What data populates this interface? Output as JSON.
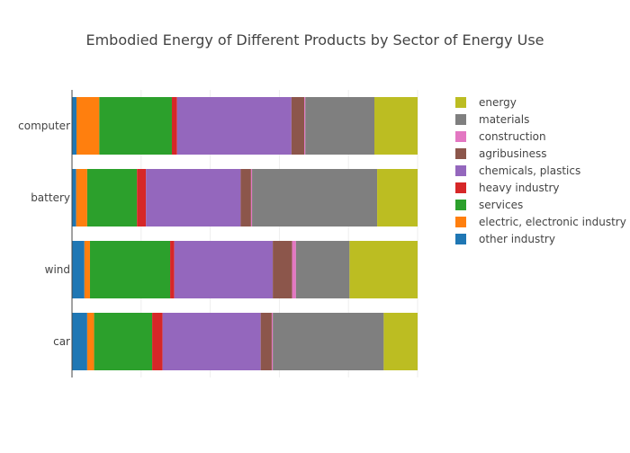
{
  "chart_data": {
    "type": "bar",
    "orientation": "horizontal",
    "stacking": "normalized-100",
    "title": "Embodied Energy of Different Products by Sector of Energy Use",
    "xlabel": "",
    "ylabel": "",
    "xlim": [
      0,
      1
    ],
    "grid": "vertical",
    "legend_position": "right",
    "categories": [
      "computer",
      "battery",
      "wind",
      "car"
    ],
    "series": [
      {
        "name": "other industry",
        "color": "#1f77b4",
        "values": [
          0.013,
          0.012,
          0.036,
          0.044
        ]
      },
      {
        "name": "electric, electronic industry",
        "color": "#ff7f0e",
        "values": [
          0.066,
          0.032,
          0.016,
          0.02
        ]
      },
      {
        "name": "services",
        "color": "#2ca02c",
        "values": [
          0.21,
          0.144,
          0.232,
          0.168
        ]
      },
      {
        "name": "heavy industry",
        "color": "#d62728",
        "values": [
          0.015,
          0.026,
          0.012,
          0.03
        ]
      },
      {
        "name": "chemicals, plastics",
        "color": "#9467bd",
        "values": [
          0.331,
          0.274,
          0.285,
          0.284
        ]
      },
      {
        "name": "agribusiness",
        "color": "#8c564b",
        "values": [
          0.037,
          0.03,
          0.056,
          0.032
        ]
      },
      {
        "name": "construction",
        "color": "#e377c2",
        "values": [
          0.003,
          0.003,
          0.011,
          0.003
        ]
      },
      {
        "name": "materials",
        "color": "#7f7f7f",
        "values": [
          0.2,
          0.362,
          0.155,
          0.321
        ]
      },
      {
        "name": "energy",
        "color": "#bcbd22",
        "values": [
          0.125,
          0.117,
          0.197,
          0.098
        ]
      }
    ]
  }
}
